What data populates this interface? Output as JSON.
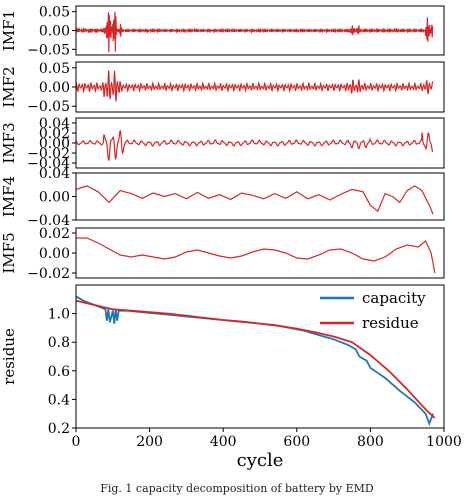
{
  "colors": {
    "imf": "#d62728",
    "capacity": "#1f77b4",
    "residue": "#d62728"
  },
  "caption": "Fig. 1 capacity decomposition of battery by EMD",
  "chart_data": [
    {
      "type": "line",
      "ylabel": "IMF1",
      "ylim": [
        -0.065,
        0.065
      ],
      "yticks": [
        0.05,
        0.0,
        -0.05
      ],
      "yticklabels": [
        "0.05",
        "0.00",
        "−0.05"
      ],
      "xlim": [
        0,
        1000
      ],
      "series": [
        {
          "name": "",
          "segments": [
            {
              "from": 0,
              "to": 75,
              "amp": 0.006,
              "period": 3
            },
            {
              "from": 75,
              "to": 82,
              "amp": 0.02,
              "period": 3
            },
            {
              "from": 82,
              "to": 110,
              "amp": 0.058,
              "period": 3
            },
            {
              "from": 110,
              "to": 125,
              "amp": 0.02,
              "period": 3
            },
            {
              "from": 125,
              "to": 740,
              "amp": 0.005,
              "period": 3
            },
            {
              "from": 740,
              "to": 770,
              "amp": 0.014,
              "period": 3
            },
            {
              "from": 770,
              "to": 950,
              "amp": 0.006,
              "period": 3
            },
            {
              "from": 950,
              "to": 970,
              "amp": 0.035,
              "period": 3
            }
          ]
        }
      ]
    },
    {
      "type": "line",
      "ylabel": "IMF2",
      "ylim": [
        -0.065,
        0.065
      ],
      "yticks": [
        0.05,
        0.0,
        -0.05
      ],
      "yticklabels": [
        "0.05",
        "0.00",
        "−0.05"
      ],
      "xlim": [
        0,
        1000
      ],
      "series": [
        {
          "name": "",
          "segments": [
            {
              "from": 0,
              "to": 75,
              "amp": 0.012,
              "period": 8
            },
            {
              "from": 75,
              "to": 120,
              "amp": 0.045,
              "period": 8
            },
            {
              "from": 120,
              "to": 740,
              "amp": 0.01,
              "period": 8
            },
            {
              "from": 740,
              "to": 780,
              "amp": 0.02,
              "period": 8
            },
            {
              "from": 780,
              "to": 945,
              "amp": 0.01,
              "period": 8
            },
            {
              "from": 945,
              "to": 970,
              "amp": 0.02,
              "period": 8
            }
          ]
        }
      ]
    },
    {
      "type": "line",
      "ylabel": "IMF3",
      "ylim": [
        -0.05,
        0.05
      ],
      "yticks": [
        0.04,
        0.02,
        0.0,
        -0.02,
        -0.04
      ],
      "yticklabels": [
        "0.04",
        "0.02",
        "0.00",
        "−0.02",
        "−0.04"
      ],
      "xlim": [
        0,
        1000
      ],
      "series": [
        {
          "name": "",
          "segments": [
            {
              "from": 0,
              "to": 75,
              "amp": 0.005,
              "period": 20
            },
            {
              "from": 75,
              "to": 135,
              "amp": 0.035,
              "period": 20
            },
            {
              "from": 135,
              "to": 740,
              "amp": 0.006,
              "period": 20
            },
            {
              "from": 740,
              "to": 800,
              "amp": 0.011,
              "period": 20
            },
            {
              "from": 800,
              "to": 940,
              "amp": 0.006,
              "period": 20
            },
            {
              "from": 940,
              "to": 970,
              "amp": 0.025,
              "period": 20
            }
          ]
        }
      ]
    },
    {
      "type": "line",
      "ylabel": "IMF4",
      "ylim": [
        -0.04,
        0.04
      ],
      "yticks": [
        0.04,
        0.0,
        -0.04
      ],
      "yticklabels": [
        "0.04",
        "0.00",
        "−0.04"
      ],
      "xlim": [
        0,
        1000
      ],
      "series": [
        {
          "name": "",
          "x": [
            0,
            30,
            60,
            90,
            120,
            150,
            180,
            210,
            240,
            270,
            300,
            330,
            360,
            390,
            420,
            450,
            480,
            510,
            540,
            570,
            600,
            630,
            660,
            690,
            720,
            750,
            780,
            800,
            820,
            840,
            860,
            880,
            900,
            920,
            940,
            960,
            970
          ],
          "values": [
            0.012,
            0.018,
            0.008,
            -0.01,
            0.01,
            0.005,
            -0.003,
            0.006,
            0.0,
            0.005,
            -0.004,
            0.007,
            -0.003,
            0.003,
            -0.005,
            0.006,
            0.002,
            -0.004,
            0.005,
            -0.003,
            0.008,
            -0.004,
            0.003,
            -0.006,
            0.004,
            0.012,
            0.008,
            -0.015,
            -0.025,
            0.005,
            0.0,
            -0.01,
            0.01,
            0.018,
            0.01,
            -0.015,
            -0.03
          ]
        }
      ]
    },
    {
      "type": "line",
      "ylabel": "IMF5",
      "ylim": [
        -0.025,
        0.025
      ],
      "yticks": [
        0.02,
        0.0,
        -0.02
      ],
      "yticklabels": [
        "0.02",
        "0.00",
        "−0.02"
      ],
      "xlim": [
        0,
        1000
      ],
      "series": [
        {
          "name": "",
          "x": [
            0,
            30,
            60,
            90,
            120,
            150,
            180,
            210,
            240,
            270,
            300,
            330,
            360,
            390,
            420,
            450,
            480,
            510,
            540,
            570,
            600,
            630,
            660,
            690,
            720,
            750,
            780,
            810,
            840,
            870,
            900,
            930,
            950,
            965,
            975
          ],
          "values": [
            0.015,
            0.015,
            0.01,
            0.004,
            -0.002,
            -0.004,
            -0.002,
            -0.004,
            -0.006,
            -0.004,
            0.001,
            0.003,
            0.0,
            -0.003,
            -0.005,
            -0.003,
            0.001,
            0.004,
            0.003,
            0.0,
            -0.005,
            -0.006,
            -0.002,
            0.003,
            0.004,
            0.0,
            -0.006,
            -0.008,
            -0.004,
            0.004,
            0.008,
            0.006,
            0.012,
            0.0,
            -0.02
          ]
        }
      ]
    },
    {
      "type": "line",
      "ylabel": "residue",
      "xlabel": "cycle",
      "xlim": [
        0,
        1000
      ],
      "ylim": [
        0.2,
        1.2
      ],
      "yticks": [
        1.0,
        0.8,
        0.6,
        0.4,
        0.2
      ],
      "yticklabels": [
        "1.0",
        "0.8",
        "0.6",
        "0.4",
        "0.2"
      ],
      "xticks": [
        0,
        200,
        400,
        600,
        800,
        1000
      ],
      "xticklabels": [
        "0",
        "200",
        "400",
        "600",
        "800",
        "1000"
      ],
      "legend": "top-right",
      "series": [
        {
          "name": "capacity",
          "x": [
            0,
            20,
            40,
            60,
            80,
            84,
            88,
            92,
            100,
            104,
            108,
            112,
            116,
            140,
            180,
            220,
            260,
            300,
            340,
            380,
            420,
            460,
            500,
            540,
            580,
            620,
            660,
            700,
            740,
            760,
            770,
            790,
            800,
            840,
            880,
            920,
            950,
            960,
            970
          ],
          "values": [
            1.12,
            1.09,
            1.07,
            1.05,
            1.03,
            0.95,
            1.03,
            0.94,
            1.02,
            0.93,
            1.03,
            0.95,
            1.02,
            1.02,
            1.01,
            1.0,
            0.99,
            0.98,
            0.97,
            0.96,
            0.95,
            0.94,
            0.93,
            0.92,
            0.9,
            0.88,
            0.85,
            0.82,
            0.78,
            0.75,
            0.7,
            0.67,
            0.62,
            0.55,
            0.46,
            0.38,
            0.3,
            0.23,
            0.3
          ]
        },
        {
          "name": "residue",
          "x": [
            0,
            50,
            100,
            150,
            200,
            250,
            300,
            350,
            400,
            450,
            500,
            550,
            600,
            650,
            700,
            750,
            800,
            850,
            900,
            950,
            975
          ],
          "values": [
            1.09,
            1.06,
            1.03,
            1.02,
            1.01,
            1.0,
            0.985,
            0.97,
            0.955,
            0.945,
            0.93,
            0.915,
            0.895,
            0.87,
            0.84,
            0.8,
            0.71,
            0.6,
            0.47,
            0.33,
            0.27
          ]
        }
      ]
    }
  ]
}
